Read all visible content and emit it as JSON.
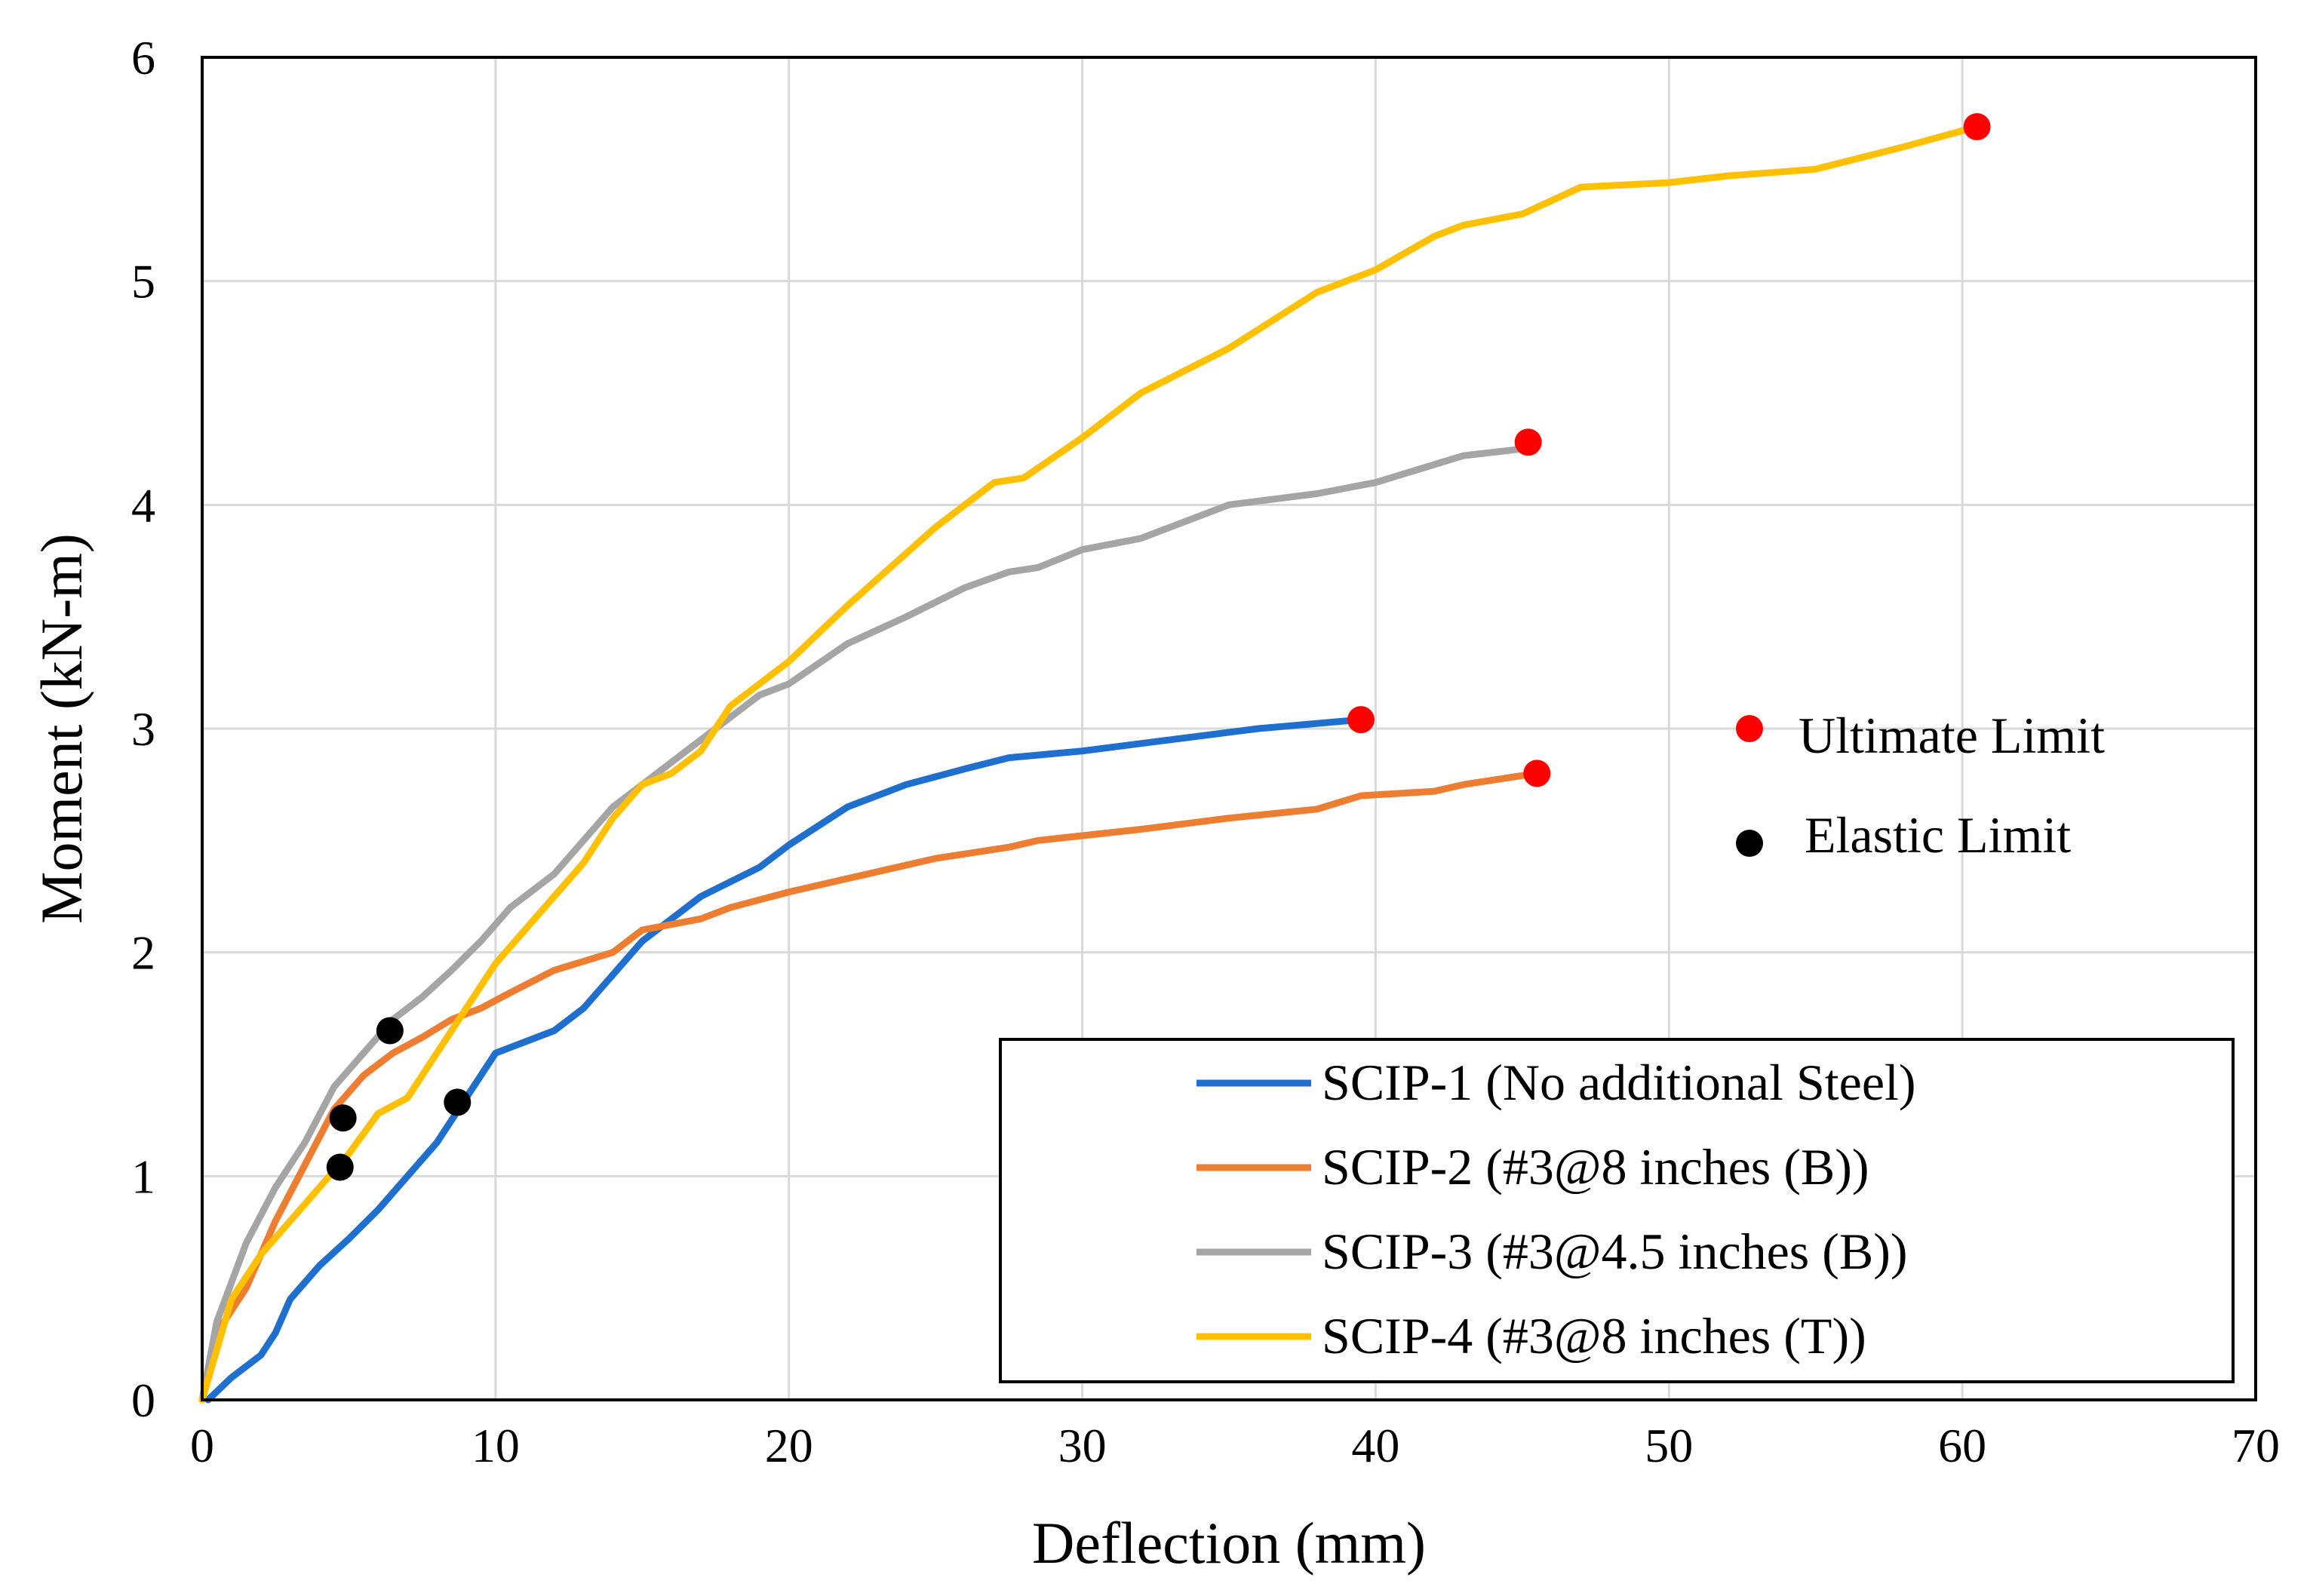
{
  "chart_data": {
    "type": "line",
    "title": "",
    "xlabel": "Deflection (mm)",
    "ylabel": "Moment (kN-m)",
    "xlim": [
      0,
      70
    ],
    "ylim": [
      0,
      6
    ],
    "xticks": [
      "0",
      "10",
      "20",
      "30",
      "40",
      "50",
      "60",
      "70"
    ],
    "yticks": [
      "0",
      "1",
      "2",
      "3",
      "4",
      "5",
      "6"
    ],
    "grid": true,
    "legend_position": "bottom-right",
    "series": [
      {
        "name": "SCIP-1 (No additional Steel)",
        "color": "#1f6fce",
        "x": [
          0.2,
          1,
          2,
          2.5,
          3,
          4,
          5,
          6,
          7,
          8,
          9,
          10,
          12,
          13,
          14,
          15,
          16,
          17,
          19,
          20,
          22,
          24,
          26,
          27.5,
          30,
          33,
          36,
          39.5
        ],
        "y": [
          0,
          0.1,
          0.2,
          0.3,
          0.45,
          0.6,
          0.72,
          0.85,
          1.0,
          1.15,
          1.35,
          1.55,
          1.65,
          1.75,
          1.9,
          2.05,
          2.15,
          2.25,
          2.38,
          2.48,
          2.65,
          2.75,
          2.82,
          2.87,
          2.9,
          2.95,
          3.0,
          3.04
        ]
      },
      {
        "name": "SCIP-2 (#3@8 inches (B))",
        "color": "#ed7d31",
        "x": [
          0,
          0.5,
          1.5,
          2.5,
          3.5,
          4.5,
          5.5,
          6.5,
          7.5,
          8.5,
          9.5,
          10.5,
          12,
          14,
          15,
          17,
          18,
          20,
          22,
          25,
          27.5,
          28.5,
          32,
          35,
          38,
          39.5,
          42,
          43,
          45.5
        ],
        "y": [
          0,
          0.3,
          0.5,
          0.8,
          1.05,
          1.3,
          1.45,
          1.55,
          1.62,
          1.7,
          1.75,
          1.82,
          1.92,
          2.0,
          2.1,
          2.15,
          2.2,
          2.27,
          2.33,
          2.42,
          2.47,
          2.5,
          2.55,
          2.6,
          2.64,
          2.7,
          2.72,
          2.75,
          2.8
        ]
      },
      {
        "name": "SCIP-3 (#3@4.5 inches (B))",
        "color": "#a5a5a5",
        "x": [
          0,
          0.5,
          1.5,
          2.5,
          3.5,
          4.5,
          5.5,
          6.5,
          7.5,
          8.5,
          9.5,
          10.5,
          12,
          13,
          14,
          15,
          16,
          17,
          18,
          19,
          20,
          22,
          24,
          26,
          27.5,
          28.5,
          30,
          32,
          35,
          38,
          40,
          42,
          43,
          45
        ],
        "y": [
          0,
          0.35,
          0.7,
          0.95,
          1.15,
          1.4,
          1.55,
          1.7,
          1.8,
          1.92,
          2.05,
          2.2,
          2.35,
          2.5,
          2.65,
          2.75,
          2.85,
          2.95,
          3.05,
          3.15,
          3.2,
          3.38,
          3.5,
          3.63,
          3.7,
          3.72,
          3.8,
          3.85,
          4.0,
          4.05,
          4.1,
          4.18,
          4.22,
          4.25
        ]
      },
      {
        "name": "SCIP-4 (#3@8 inches (T))",
        "color": "#ffc000",
        "x": [
          0,
          1,
          2,
          3,
          4,
          5,
          6,
          7,
          8,
          9,
          10,
          12,
          13,
          14,
          15,
          16,
          17,
          18,
          20,
          22,
          25,
          27,
          28,
          30,
          32,
          35,
          38,
          40,
          42,
          43,
          45,
          47,
          50,
          52,
          55,
          58,
          60.5
        ],
        "y": [
          0,
          0.45,
          0.65,
          0.8,
          0.95,
          1.1,
          1.28,
          1.35,
          1.55,
          1.75,
          1.95,
          2.25,
          2.4,
          2.6,
          2.75,
          2.8,
          2.9,
          3.1,
          3.3,
          3.55,
          3.9,
          4.1,
          4.12,
          4.3,
          4.5,
          4.7,
          4.95,
          5.05,
          5.2,
          5.25,
          5.3,
          5.42,
          5.44,
          5.47,
          5.5,
          5.6,
          5.69
        ]
      }
    ],
    "markers": [
      {
        "name": "Ultimate Limit",
        "color": "#ff0000",
        "points": [
          [
            39.5,
            3.04
          ],
          [
            45.2,
            4.28
          ],
          [
            45.5,
            2.8
          ],
          [
            60.5,
            5.69
          ]
        ]
      },
      {
        "name": "Elastic Limit",
        "color": "#000000",
        "points": [
          [
            4.7,
            1.04
          ],
          [
            4.8,
            1.26
          ],
          [
            6.4,
            1.65
          ],
          [
            8.7,
            1.33
          ]
        ]
      }
    ]
  }
}
